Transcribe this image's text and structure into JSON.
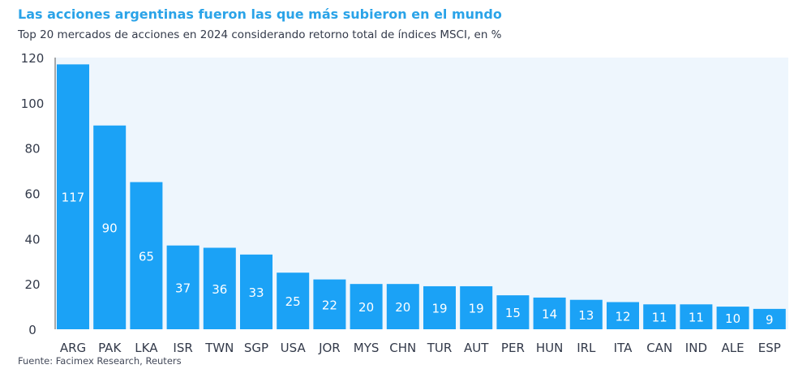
{
  "chart_data": {
    "type": "bar",
    "title": "Las acciones argentinas fueron las que más subieron en el mundo",
    "subtitle": "Top 20 mercados de acciones en 2024 considerando retorno total de índices MSCI, en %",
    "source": "Fuente: Facimex Research, Reuters",
    "xlabel": "",
    "ylabel": "",
    "ylim": [
      0,
      120
    ],
    "yticks": [
      0,
      20,
      40,
      60,
      80,
      100,
      120
    ],
    "categories": [
      "ARG",
      "PAK",
      "LKA",
      "ISR",
      "TWN",
      "SGP",
      "USA",
      "JOR",
      "MYS",
      "CHN",
      "TUR",
      "AUT",
      "PER",
      "HUN",
      "IRL",
      "ITA",
      "CAN",
      "IND",
      "ALE",
      "ESP"
    ],
    "values": [
      117,
      90,
      65,
      37,
      36,
      33,
      25,
      22,
      20,
      20,
      19,
      19,
      15,
      14,
      13,
      12,
      11,
      11,
      10,
      9
    ],
    "colors": {
      "bar": "#1ba2f6",
      "plot_bg": "#eef6fd",
      "title": "#2aa3e8"
    }
  }
}
